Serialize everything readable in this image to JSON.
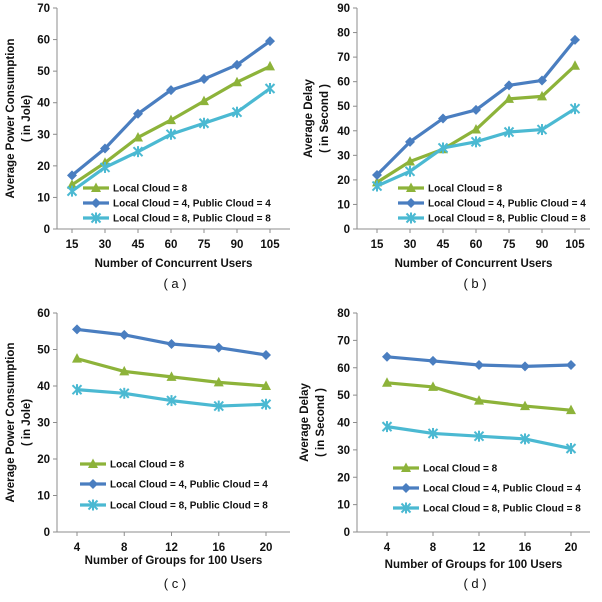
{
  "colors": {
    "local": "#8DB33A",
    "public4": "#4A7EC0",
    "public8": "#4BB9D2",
    "axis": "#8c8c8c"
  },
  "chart_data": [
    {
      "type": "line",
      "caption": "( a )",
      "xlabel": "Number of Concurrent Users",
      "ylabel": [
        "Average Power Consumption",
        "( in Jole)"
      ],
      "categories": [
        "15",
        "30",
        "45",
        "60",
        "75",
        "90",
        "105"
      ],
      "ylim": [
        0,
        70
      ],
      "yticks": [
        "0",
        "10",
        "20",
        "30",
        "40",
        "50",
        "60",
        "70"
      ],
      "legend_position": "bottom-left",
      "series": [
        {
          "name": "Local Cloud = 8",
          "marker": "triangle",
          "color": "#8DB33A",
          "values": [
            14,
            21,
            29,
            34.5,
            40.5,
            46.5,
            51.5
          ]
        },
        {
          "name": "Local Cloud = 4, Public Cloud = 4",
          "marker": "diamond",
          "color": "#4A7EC0",
          "values": [
            17,
            25.5,
            36.5,
            44,
            47.5,
            52,
            59.5
          ]
        },
        {
          "name": "Local Cloud = 8, Public Cloud = 8",
          "marker": "star",
          "color": "#4BB9D2",
          "values": [
            12,
            19.5,
            24.5,
            30,
            33.5,
            37,
            44.5
          ]
        }
      ]
    },
    {
      "type": "line",
      "caption": "( b )",
      "xlabel": "Number of Concurrent Users",
      "ylabel": [
        "Average Delay",
        "( in Second )"
      ],
      "categories": [
        "15",
        "30",
        "45",
        "60",
        "75",
        "90",
        "105"
      ],
      "ylim": [
        0,
        90
      ],
      "yticks": [
        "0",
        "10",
        "20",
        "30",
        "40",
        "50",
        "60",
        "70",
        "80",
        "90"
      ],
      "legend_position": "bottom-right",
      "series": [
        {
          "name": "Local Cloud = 8",
          "marker": "triangle",
          "color": "#8DB33A",
          "values": [
            19,
            27.5,
            32.5,
            40.5,
            53,
            54,
            66.5
          ]
        },
        {
          "name": "Local Cloud = 4, Public Cloud = 4",
          "marker": "diamond",
          "color": "#4A7EC0",
          "values": [
            22,
            35.5,
            45,
            48.5,
            58.5,
            60.5,
            77
          ]
        },
        {
          "name": "Local Cloud = 8, Public Cloud = 8",
          "marker": "star",
          "color": "#4BB9D2",
          "values": [
            17.5,
            23.5,
            33,
            35.5,
            39.5,
            40.5,
            49
          ]
        }
      ]
    },
    {
      "type": "line",
      "caption": "( c )",
      "xlabel": "Number of Groups for 100 Users",
      "ylabel": [
        "Average Power Consumption",
        "( in Jole)"
      ],
      "categories": [
        "4",
        "8",
        "12",
        "16",
        "20"
      ],
      "ylim": [
        0,
        60
      ],
      "yticks": [
        "0",
        "10",
        "20",
        "30",
        "40",
        "50",
        "60"
      ],
      "legend_position": "bottom-left",
      "series": [
        {
          "name": "Local Cloud = 8",
          "marker": "triangle",
          "color": "#8DB33A",
          "values": [
            47.5,
            44,
            42.5,
            41,
            40
          ]
        },
        {
          "name": "Local Cloud = 4, Public Cloud = 4",
          "marker": "diamond",
          "color": "#4A7EC0",
          "values": [
            55.5,
            54,
            51.5,
            50.5,
            48.5
          ]
        },
        {
          "name": "Local Cloud = 8, Public Cloud = 8",
          "marker": "star",
          "color": "#4BB9D2",
          "values": [
            39,
            38,
            36,
            34.5,
            35
          ]
        }
      ]
    },
    {
      "type": "line",
      "caption": "( d )",
      "xlabel": "Number of Groups for 100 Users",
      "ylabel": [
        "Average Delay",
        "( in Second )"
      ],
      "categories": [
        "4",
        "8",
        "12",
        "16",
        "20"
      ],
      "ylim": [
        0,
        80
      ],
      "yticks": [
        "0",
        "10",
        "20",
        "30",
        "40",
        "50",
        "60",
        "70",
        "80"
      ],
      "legend_position": "bottom-right",
      "series": [
        {
          "name": "Local Cloud = 8",
          "marker": "triangle",
          "color": "#8DB33A",
          "values": [
            54.5,
            53,
            48,
            46,
            44.5
          ]
        },
        {
          "name": "Local Cloud = 4, Public Cloud = 4",
          "marker": "diamond",
          "color": "#4A7EC0",
          "values": [
            64,
            62.5,
            61,
            60.5,
            61
          ]
        },
        {
          "name": "Local Cloud = 8, Public Cloud = 8",
          "marker": "star",
          "color": "#4BB9D2",
          "values": [
            38.5,
            36,
            35,
            34,
            30.5
          ]
        }
      ]
    }
  ]
}
